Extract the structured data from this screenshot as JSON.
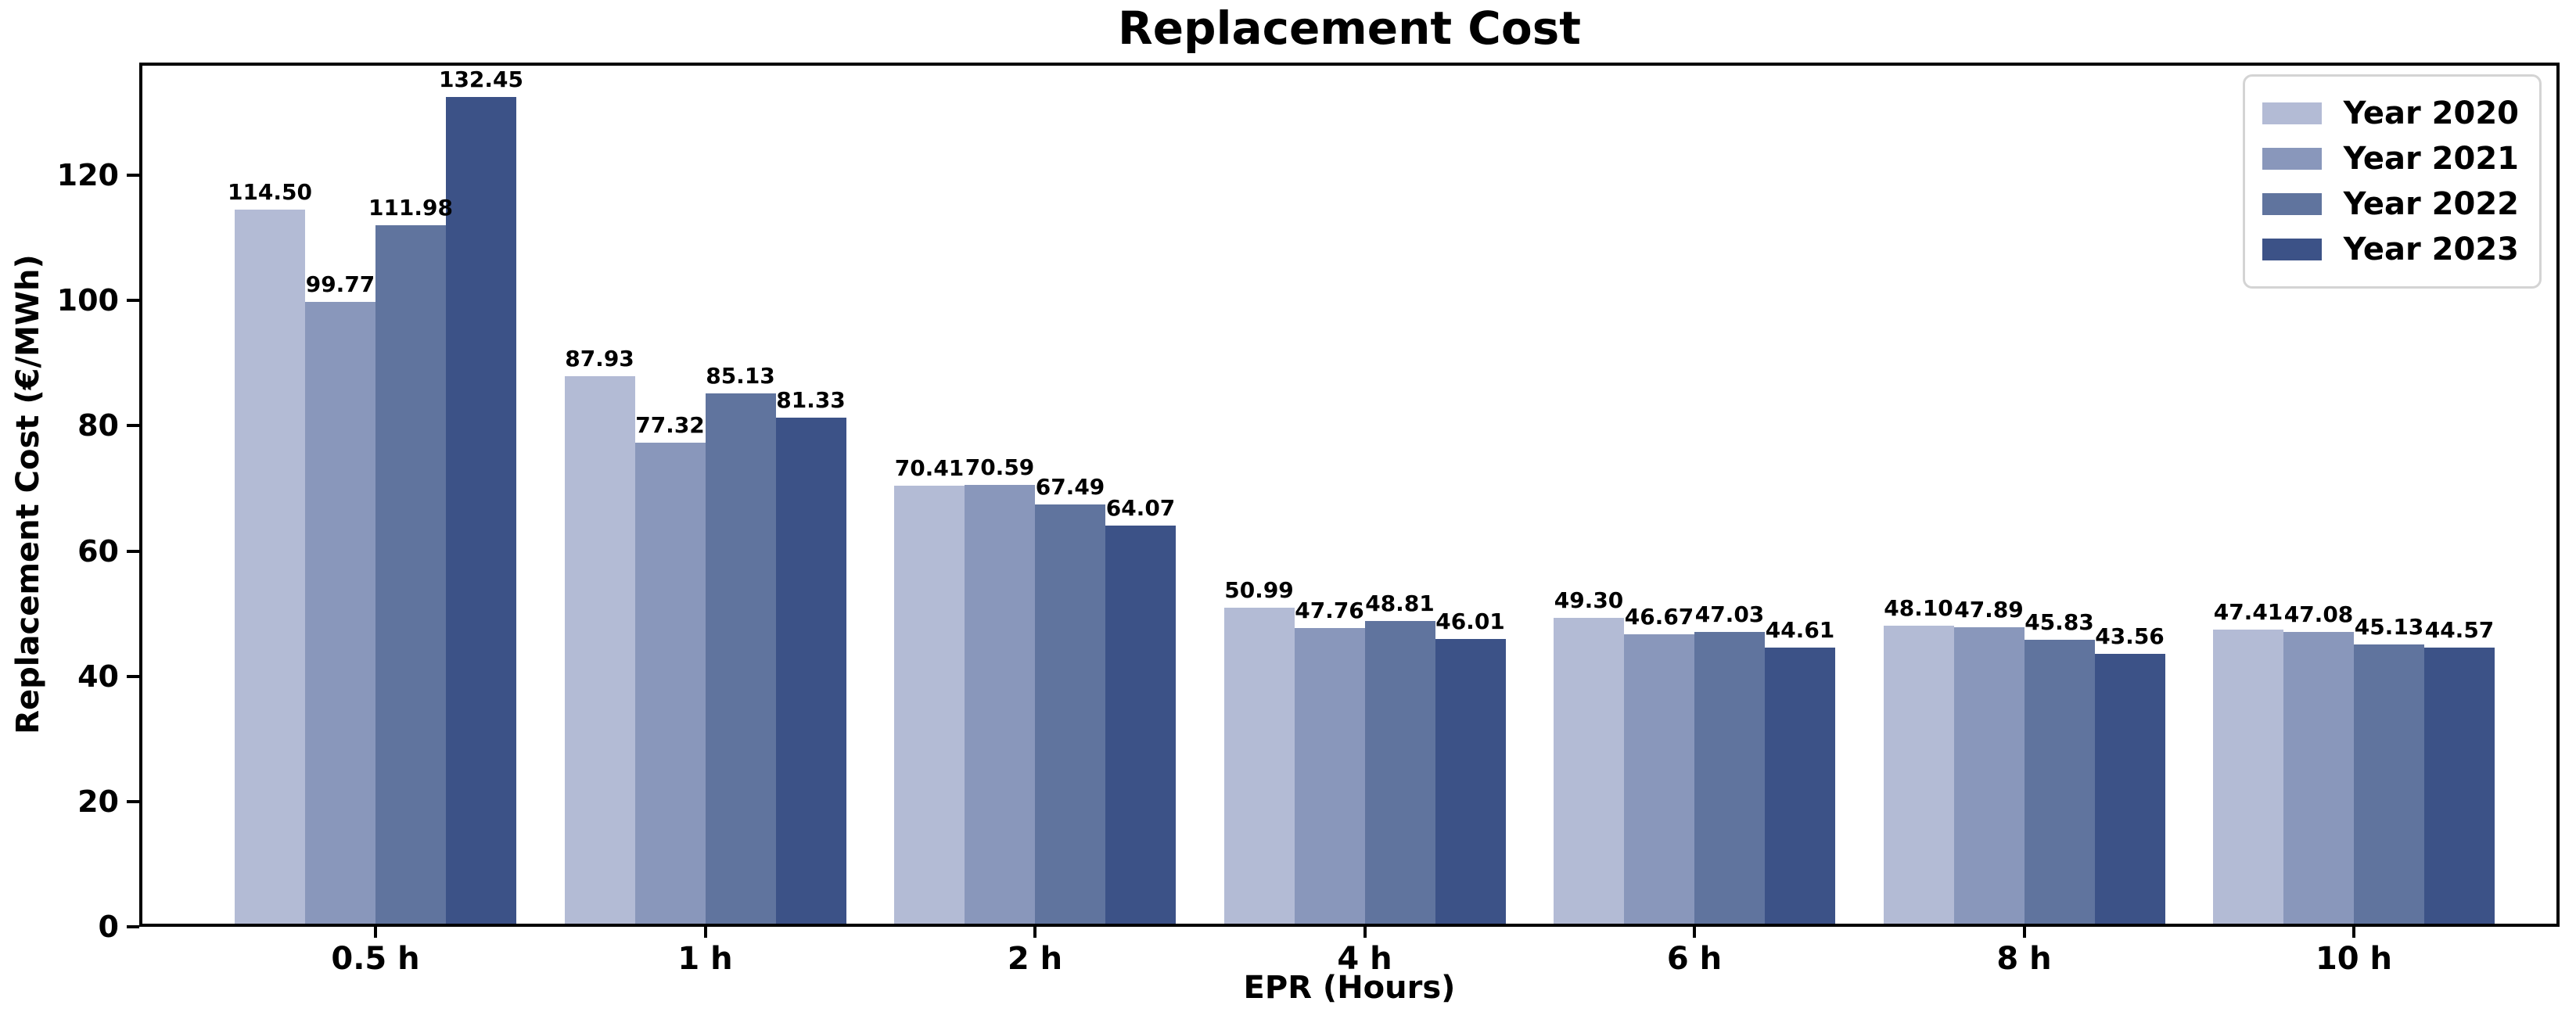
{
  "chart_data": {
    "type": "bar",
    "title": "Replacement Cost",
    "xlabel": "EPR (Hours)",
    "ylabel": "Replacement Cost (€/MWh)",
    "categories": [
      "0.5 h",
      "1 h",
      "2 h",
      "4 h",
      "6 h",
      "8 h",
      "10 h"
    ],
    "series": [
      {
        "name": "Year 2020",
        "color": "#b3bbd5",
        "values": [
          114.5,
          87.93,
          70.41,
          50.99,
          49.3,
          48.1,
          47.41
        ]
      },
      {
        "name": "Year 2021",
        "color": "#8997bb",
        "values": [
          99.77,
          77.32,
          70.59,
          47.76,
          46.67,
          47.89,
          47.08
        ]
      },
      {
        "name": "Year 2022",
        "color": "#60749e",
        "values": [
          111.98,
          85.13,
          67.49,
          48.81,
          47.03,
          45.83,
          45.13
        ]
      },
      {
        "name": "Year 2023",
        "color": "#3c5287",
        "values": [
          132.45,
          81.33,
          64.07,
          46.01,
          44.61,
          43.56,
          44.57
        ]
      }
    ],
    "yticks": [
      0,
      20,
      40,
      60,
      80,
      100,
      120
    ],
    "ylim": [
      0,
      138
    ],
    "grid": false,
    "legend_position": "upper right",
    "bar_value_labels": true,
    "value_label_decimals": 2
  },
  "style_colors": {
    "axis": "#000000",
    "text": "#000000",
    "legend_border": "#d4d4d4",
    "background": "#ffffff"
  }
}
